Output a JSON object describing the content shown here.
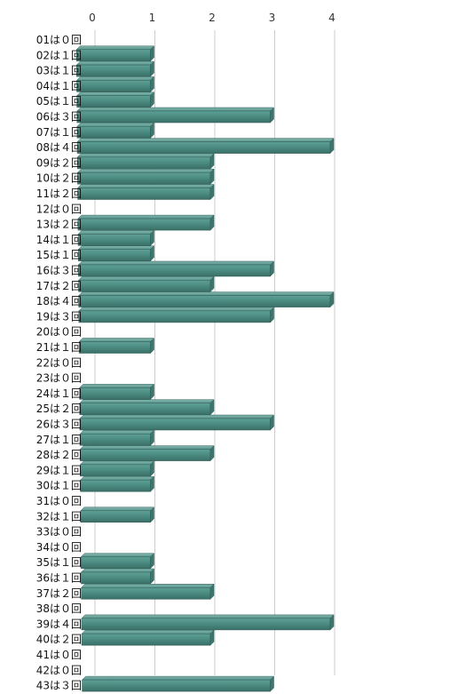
{
  "chart_data": {
    "type": "bar",
    "orientation": "horizontal",
    "style": "3d",
    "bar_color": "#4a8a80",
    "xlim": [
      0,
      4
    ],
    "xticks": [
      "0",
      "1",
      "2",
      "3",
      "4"
    ],
    "grid": true,
    "categories": [
      "01は０回",
      "02は１回",
      "03は１回",
      "04は１回",
      "05は１回",
      "06は３回",
      "07は１回",
      "08は４回",
      "09は２回",
      "10は２回",
      "11は２回",
      "12は０回",
      "13は２回",
      "14は１回",
      "15は１回",
      "16は３回",
      "17は２回",
      "18は４回",
      "19は３回",
      "20は０回",
      "21は１回",
      "22は０回",
      "23は０回",
      "24は１回",
      "25は２回",
      "26は３回",
      "27は１回",
      "28は２回",
      "29は１回",
      "30は１回",
      "31は０回",
      "32は１回",
      "33は０回",
      "34は０回",
      "35は１回",
      "36は１回",
      "37は２回",
      "38は０回",
      "39は４回",
      "40は２回",
      "41は０回",
      "42は０回",
      "43は３回"
    ],
    "values": [
      0,
      1,
      1,
      1,
      1,
      3,
      1,
      4,
      2,
      2,
      2,
      0,
      2,
      1,
      1,
      3,
      2,
      4,
      3,
      0,
      1,
      0,
      0,
      1,
      2,
      3,
      1,
      2,
      1,
      1,
      0,
      1,
      0,
      0,
      1,
      1,
      2,
      0,
      4,
      2,
      0,
      0,
      3
    ]
  }
}
